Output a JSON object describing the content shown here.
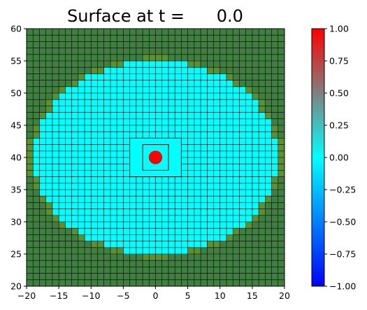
{
  "chart_data": {
    "type": "heatmap",
    "title": "Surface at t =      0.0",
    "xlabel": "",
    "ylabel": "",
    "xlim": [
      -20,
      20
    ],
    "ylim": [
      20,
      60
    ],
    "xticks": [
      -20,
      -15,
      -10,
      -5,
      0,
      5,
      10,
      15,
      20
    ],
    "yticks": [
      20,
      25,
      30,
      35,
      40,
      45,
      50,
      55,
      60
    ],
    "grid_cell_size": 1,
    "colorbar": {
      "range": [
        -1.0,
        1.0
      ],
      "ticks": [
        1.0,
        0.75,
        0.5,
        0.25,
        0.0,
        -0.25,
        -0.5,
        -0.75,
        -1.0
      ],
      "tick_labels": [
        "1.00",
        "0.75",
        "0.50",
        "0.25",
        "0.00",
        "-0.25",
        "-0.50",
        "-0.75",
        "-1.00"
      ],
      "colors": [
        "#0000ff",
        "#00ffff",
        "#ff0000"
      ]
    },
    "regions": {
      "land": {
        "color": "#3f7f3f",
        "value": null
      },
      "water": {
        "color": "#00ffff",
        "value": 0.0,
        "center": [
          0,
          40
        ],
        "radius_x": 19,
        "radius_y": 15
      },
      "hump": {
        "color": "#ff0000",
        "value": 1.0,
        "center": [
          0,
          40
        ],
        "radius": 1.0
      }
    },
    "refinement_boxes": [
      {
        "x": [
          -4,
          4
        ],
        "y": [
          37,
          43
        ]
      },
      {
        "x": [
          -2,
          2
        ],
        "y": [
          38,
          42
        ]
      }
    ],
    "grid": true
  }
}
